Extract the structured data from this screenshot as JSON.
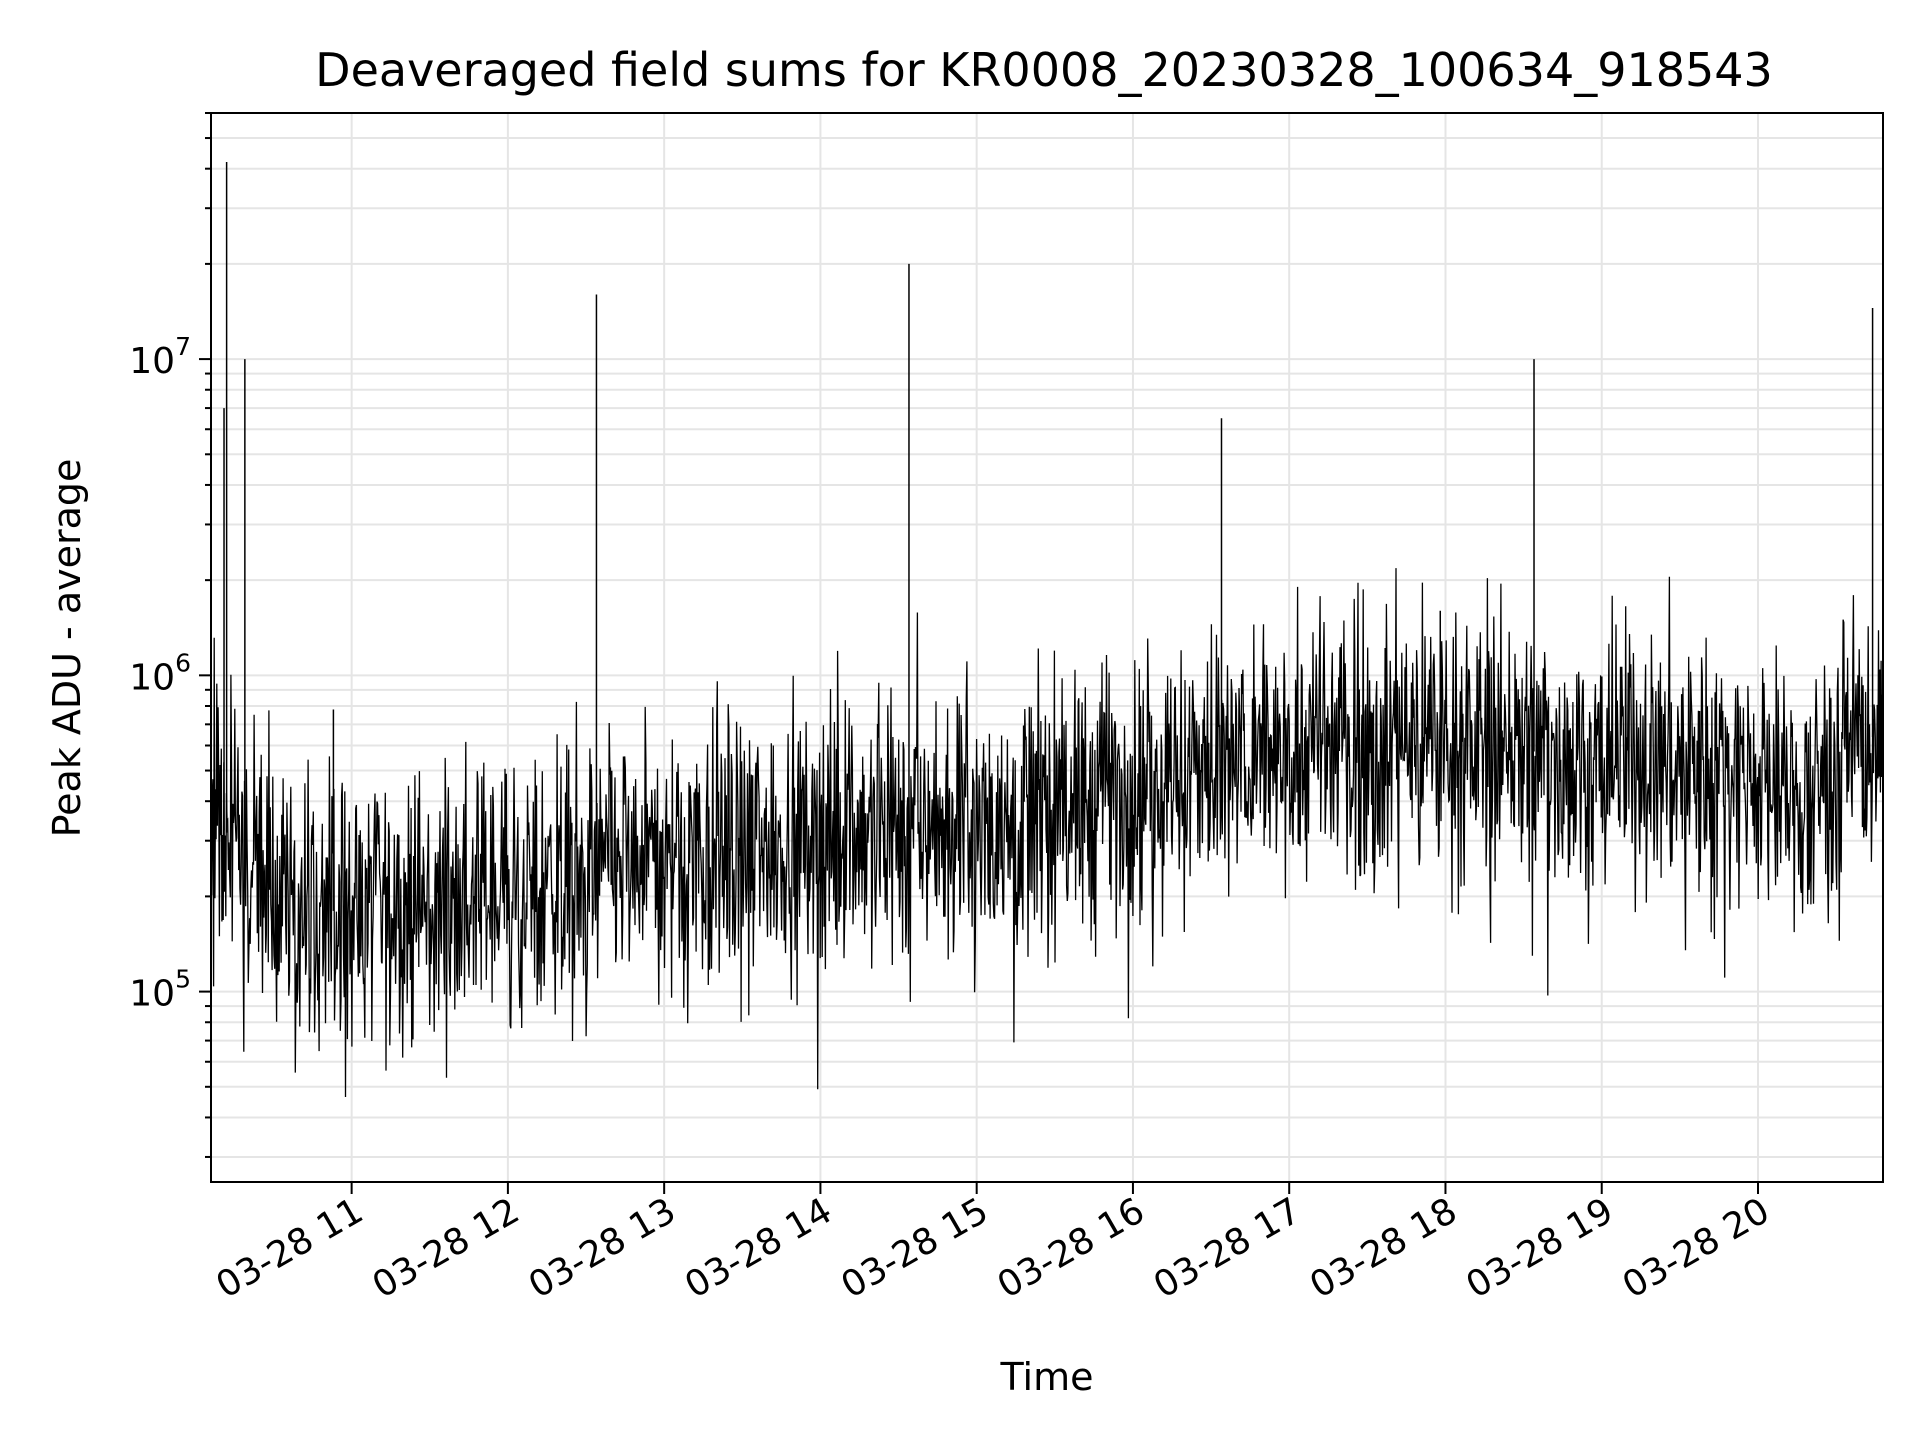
{
  "chart_data": {
    "type": "line",
    "title": "Deaveraged field sums for KR0008_20230328_100634_918543",
    "xlabel": "Time",
    "ylabel": "Peak ADU - average",
    "yscale": "log",
    "ylim": [
      25000,
      60000000
    ],
    "xlim": [
      "2023-03-28 10:06",
      "2023-03-28 20:48"
    ],
    "x_ticks": [
      {
        "t": "2023-03-28 11:00",
        "label": "03-28 11"
      },
      {
        "t": "2023-03-28 12:00",
        "label": "03-28 12"
      },
      {
        "t": "2023-03-28 13:00",
        "label": "03-28 13"
      },
      {
        "t": "2023-03-28 14:00",
        "label": "03-28 14"
      },
      {
        "t": "2023-03-28 15:00",
        "label": "03-28 15"
      },
      {
        "t": "2023-03-28 16:00",
        "label": "03-28 16"
      },
      {
        "t": "2023-03-28 17:00",
        "label": "03-28 17"
      },
      {
        "t": "2023-03-28 18:00",
        "label": "03-28 18"
      },
      {
        "t": "2023-03-28 19:00",
        "label": "03-28 19"
      },
      {
        "t": "2023-03-28 20:00",
        "label": "03-28 20"
      }
    ],
    "y_ticks": [
      {
        "value": 100000,
        "base": "10",
        "exp": "5"
      },
      {
        "value": 1000000,
        "base": "10",
        "exp": "6"
      },
      {
        "value": 10000000,
        "base": "10",
        "exp": "7"
      }
    ],
    "grid": true,
    "line_color": "#000000",
    "grid_color": "#e5e5e5",
    "baseline": [
      {
        "t": "2023-03-28 10:06",
        "y": 350000
      },
      {
        "t": "2023-03-28 10:20",
        "y": 280000
      },
      {
        "t": "2023-03-28 10:40",
        "y": 180000
      },
      {
        "t": "2023-03-28 11:00",
        "y": 180000
      },
      {
        "t": "2023-03-28 11:30",
        "y": 180000
      },
      {
        "t": "2023-03-28 12:00",
        "y": 210000
      },
      {
        "t": "2023-03-28 12:30",
        "y": 240000
      },
      {
        "t": "2023-03-28 13:00",
        "y": 270000
      },
      {
        "t": "2023-03-28 13:30",
        "y": 290000
      },
      {
        "t": "2023-03-28 14:00",
        "y": 320000
      },
      {
        "t": "2023-03-28 14:30",
        "y": 340000
      },
      {
        "t": "2023-03-28 15:00",
        "y": 350000
      },
      {
        "t": "2023-03-28 15:30",
        "y": 380000
      },
      {
        "t": "2023-03-28 16:00",
        "y": 450000
      },
      {
        "t": "2023-03-28 16:30",
        "y": 520000
      },
      {
        "t": "2023-03-28 17:00",
        "y": 570000
      },
      {
        "t": "2023-03-28 17:30",
        "y": 600000
      },
      {
        "t": "2023-03-28 18:00",
        "y": 620000
      },
      {
        "t": "2023-03-28 18:30",
        "y": 580000
      },
      {
        "t": "2023-03-28 19:00",
        "y": 540000
      },
      {
        "t": "2023-03-28 19:30",
        "y": 540000
      },
      {
        "t": "2023-03-28 20:00",
        "y": 480000
      },
      {
        "t": "2023-03-28 20:20",
        "y": 360000
      },
      {
        "t": "2023-03-28 20:30",
        "y": 600000
      },
      {
        "t": "2023-03-28 20:48",
        "y": 650000
      }
    ],
    "spikes": [
      {
        "t": "2023-03-28 10:12",
        "y": 42000000
      },
      {
        "t": "2023-03-28 10:11",
        "y": 7000000
      },
      {
        "t": "2023-03-28 10:19",
        "y": 10000000
      },
      {
        "t": "2023-03-28 12:34",
        "y": 16000000
      },
      {
        "t": "2023-03-28 14:34",
        "y": 20000000
      },
      {
        "t": "2023-03-28 16:34",
        "y": 6500000
      },
      {
        "t": "2023-03-28 18:34",
        "y": 10000000
      },
      {
        "t": "2023-03-28 20:44",
        "y": 14500000
      },
      {
        "t": "2023-03-28 10:53",
        "y": 780000
      },
      {
        "t": "2023-03-28 17:58",
        "y": 1600000
      }
    ]
  }
}
